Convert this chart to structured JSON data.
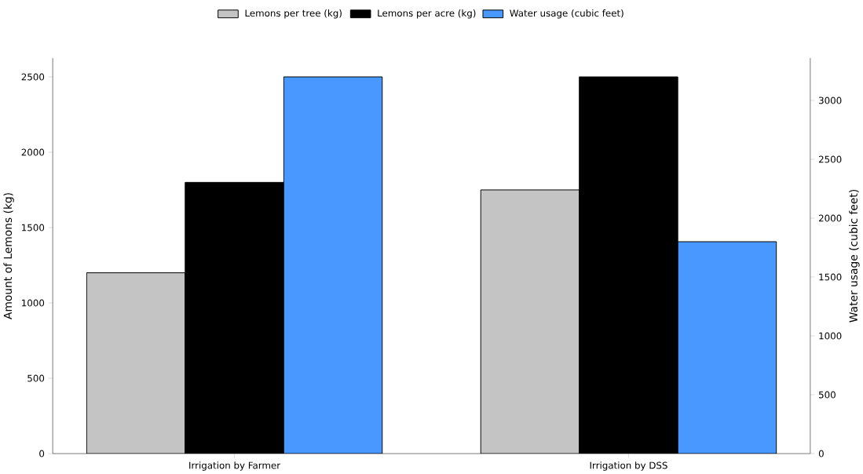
{
  "chart_data": {
    "type": "bar",
    "categories": [
      "Irrigation by Farmer",
      "Irrigation by DSS"
    ],
    "series": [
      {
        "name": "Lemons per tree (kg)",
        "color": "#c4c4c4",
        "values": [
          1200,
          1750
        ]
      },
      {
        "name": "Lemons per acre (kg)",
        "color": "#000000",
        "values": [
          1800,
          2500
        ]
      },
      {
        "name": "Water usage (cubic feet)",
        "color": "#4898ff",
        "values": [
          3200,
          1800
        ],
        "axis": "y2"
      }
    ],
    "ylabel": "Amount of Lemons (kg)",
    "y2label": "Water usage (cubic feet)",
    "ylim": [
      0,
      2625
    ],
    "yticks": [
      0,
      500,
      1000,
      1500,
      2000,
      2500
    ],
    "y2lim": [
      0,
      3360
    ],
    "y2ticks": [
      0,
      500,
      1000,
      1500,
      2000,
      2500,
      3000
    ],
    "legend": "top"
  }
}
